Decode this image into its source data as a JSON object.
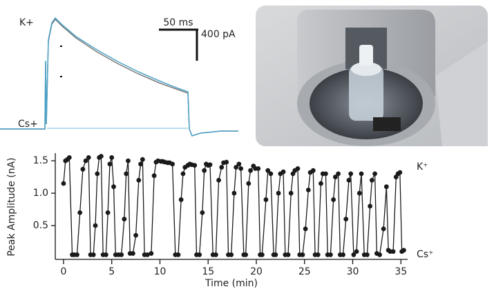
{
  "trace_panel": {
    "label_top": "K+",
    "label_bottom": "Cs+",
    "scale_x": "50 ms",
    "scale_y": "400 pA"
  },
  "chart_data": {
    "type": "line",
    "xlabel": "Time (min)",
    "ylabel": "Peak Amplitude (nA)",
    "annotations": [
      "K⁺",
      "Cs⁺"
    ],
    "color": "#1a1a1a",
    "markers": true,
    "xlim": [
      -0.5,
      35.7
    ],
    "xticks": [
      0,
      5,
      10,
      15,
      20,
      25,
      30,
      35
    ],
    "ylim": [
      0,
      1.65
    ],
    "yticks": [
      0.5,
      {
        "value": 1,
        "label": "1.0"
      },
      1.5
    ],
    "x": [
      0,
      0.2,
      0.4,
      0.6,
      0.9,
      1.1,
      1.4,
      1.7,
      2.0,
      2.3,
      2.6,
      2.8,
      3.1,
      3.3,
      3.5,
      3.7,
      3.9,
      4.1,
      4.4,
      4.6,
      4.8,
      5.0,
      5.2,
      5.4,
      5.7,
      6.0,
      6.3,
      6.5,
      6.7,
      6.9,
      7.2,
      7.5,
      7.8,
      8.0,
      8.2,
      8.4,
      8.7,
      9.1,
      9.4,
      9.6,
      9.8,
      10.1,
      10.3,
      10.5,
      10.8,
      11.0,
      11.3,
      11.6,
      11.9,
      12.2,
      12.4,
      12.6,
      12.9,
      13.1,
      13.3,
      13.6,
      13.8,
      14.1,
      14.4,
      14.6,
      14.8,
      15.0,
      15.2,
      15.5,
      15.8,
      16.1,
      16.4,
      16.6,
      16.9,
      17.1,
      17.4,
      17.7,
      17.9,
      18.2,
      18.4,
      18.7,
      18.9,
      19.2,
      19.4,
      19.7,
      19.9,
      20.2,
      20.4,
      20.6,
      21.0,
      21.2,
      21.5,
      21.8,
      22.0,
      22.3,
      22.5,
      22.8,
      23.0,
      23.3,
      23.6,
      23.8,
      24.0,
      24.3,
      24.5,
      24.8,
      25.1,
      25.4,
      25.6,
      25.9,
      26.1,
      26.4,
      26.7,
      26.9,
      27.2,
      27.4,
      27.7,
      28.0,
      28.2,
      28.5,
      28.7,
      29.0,
      29.3,
      29.6,
      29.8,
      30.1,
      30.4,
      30.7,
      30.9,
      31.2,
      31.5,
      31.8,
      32.0,
      32.3,
      32.5,
      32.8,
      33.2,
      33.5,
      33.7,
      33.9,
      34.2,
      34.5,
      34.7,
      34.9,
      35.1,
      35.3
    ],
    "values": [
      1.15,
      1.5,
      1.52,
      1.55,
      0.05,
      0.05,
      0.05,
      0.7,
      1.37,
      1.5,
      1.55,
      0.05,
      0.05,
      0.5,
      1.3,
      1.55,
      1.57,
      0.05,
      0.05,
      0.7,
      1.45,
      1.55,
      1.1,
      0.05,
      0.05,
      0.05,
      0.6,
      1.3,
      1.5,
      0.07,
      0.07,
      0.35,
      1.2,
      1.45,
      1.52,
      0.05,
      0.05,
      0.07,
      1.27,
      1.48,
      1.5,
      1.49,
      1.49,
      1.48,
      1.47,
      1.47,
      1.45,
      0.05,
      0.05,
      0.9,
      1.3,
      1.4,
      1.43,
      1.45,
      1.44,
      1.43,
      0.05,
      0.05,
      0.7,
      1.35,
      1.45,
      1.43,
      1.44,
      0.05,
      0.05,
      1.2,
      1.4,
      1.47,
      1.48,
      0.05,
      0.05,
      1.0,
      1.4,
      1.45,
      1.38,
      0.05,
      0.05,
      1.15,
      1.35,
      1.42,
      1.38,
      1.38,
      0.05,
      0.05,
      0.9,
      1.35,
      1.3,
      0.05,
      0.05,
      1.0,
      1.3,
      1.33,
      0.05,
      0.05,
      1.0,
      1.3,
      1.35,
      1.38,
      0.05,
      0.05,
      0.45,
      1.05,
      1.32,
      1.35,
      0.05,
      0.05,
      1.15,
      1.3,
      1.3,
      0.05,
      0.05,
      0.9,
      1.25,
      1.3,
      0.05,
      0.05,
      0.6,
      1.2,
      1.3,
      0.05,
      0.1,
      1.0,
      1.3,
      0.05,
      0.05,
      0.8,
      1.2,
      1.3,
      0.07,
      0.05,
      0.45,
      1.1,
      0.12,
      0.1,
      0.1,
      1.25,
      1.3,
      1.32,
      0.1,
      0.12
    ]
  }
}
